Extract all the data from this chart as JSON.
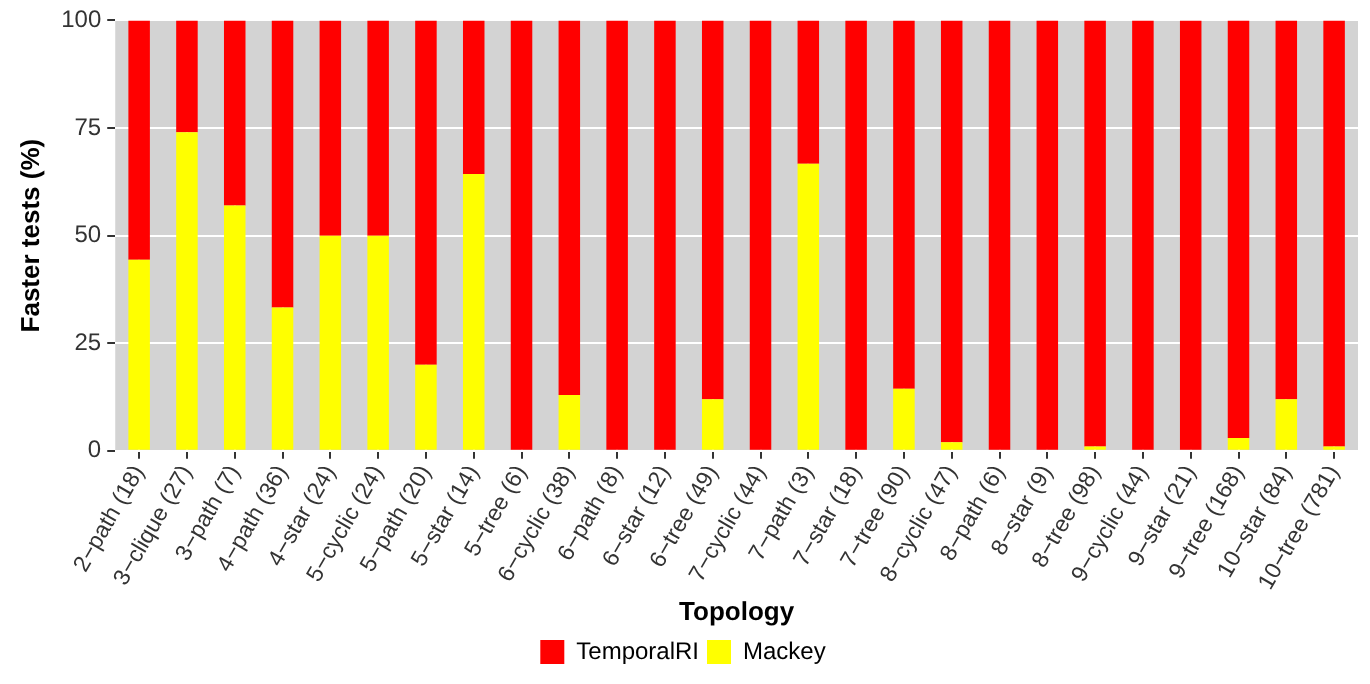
{
  "chart_data": {
    "type": "bar",
    "stacked": true,
    "xlabel": "Topology",
    "ylabel": "Faster tests (%)",
    "categories": [
      "2−path (18)",
      "3−clique (27)",
      "3−path (7)",
      "4−path (36)",
      "4−star (24)",
      "5−cyclic (24)",
      "5−path (20)",
      "5−star (14)",
      "5−tree (6)",
      "6−cyclic (38)",
      "6−path (8)",
      "6−star (12)",
      "6−tree (49)",
      "7−cyclic (44)",
      "7−path (3)",
      "7−star (18)",
      "7−tree (90)",
      "8−cyclic (47)",
      "8−path (6)",
      "8−star (9)",
      "8−tree (98)",
      "9−cyclic (44)",
      "9−star (21)",
      "9−tree (168)",
      "10−star (84)",
      "10−tree (781)"
    ],
    "series": [
      {
        "name": "Mackey",
        "color": "#ffff00",
        "values": [
          44.4,
          74,
          57,
          33.3,
          50,
          50,
          20,
          64.3,
          0,
          13,
          0,
          0,
          12,
          0,
          66.7,
          0,
          14.4,
          2,
          0,
          0,
          1,
          0,
          0,
          3,
          12,
          1
        ]
      },
      {
        "name": "TemporalRI",
        "color": "#ff0000",
        "values": [
          55.6,
          26,
          43,
          66.7,
          50,
          50,
          80,
          35.7,
          100,
          87,
          100,
          100,
          88,
          100,
          33.3,
          100,
          85.6,
          98,
          100,
          100,
          99,
          100,
          100,
          97,
          88,
          99
        ]
      }
    ],
    "ylim": [
      0,
      100
    ],
    "yticks": [
      0,
      25,
      50,
      75,
      100
    ],
    "grid": true,
    "legend": "bottom"
  }
}
